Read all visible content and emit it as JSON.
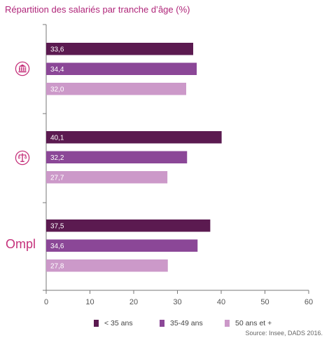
{
  "chart_data": {
    "type": "bar",
    "orientation": "horizontal",
    "title": "Répartition des salariés par tranche d’âge (%)",
    "categories": [
      "bank-building-logo",
      "scales-logo",
      "Ompl"
    ],
    "series": [
      {
        "name": "< 35 ans",
        "color": "#5b1a50",
        "values": [
          33.6,
          40.1,
          37.5
        ],
        "labels": [
          "33,6",
          "40,1",
          "37,5"
        ]
      },
      {
        "name": "35-49 ans",
        "color": "#8b4797",
        "values": [
          34.4,
          32.2,
          34.6
        ],
        "labels": [
          "34,4",
          "32,2",
          "34,6"
        ]
      },
      {
        "name": "50 ans et +",
        "color": "#cc99c9",
        "values": [
          32.0,
          27.7,
          27.8
        ],
        "labels": [
          "32,0",
          "27,7",
          "27,8"
        ]
      }
    ],
    "xlim": [
      0,
      60
    ],
    "xticks": [
      "0",
      "10",
      "20",
      "30",
      "40",
      "50",
      "60"
    ],
    "grid": false,
    "legend_position": "bottom"
  },
  "icons": [
    "bank-building-logo",
    "scales-logo"
  ],
  "brand": {
    "accent": "#c5317b",
    "ompl": "Ompl"
  },
  "source": "Source: Insee, DADS 2016."
}
